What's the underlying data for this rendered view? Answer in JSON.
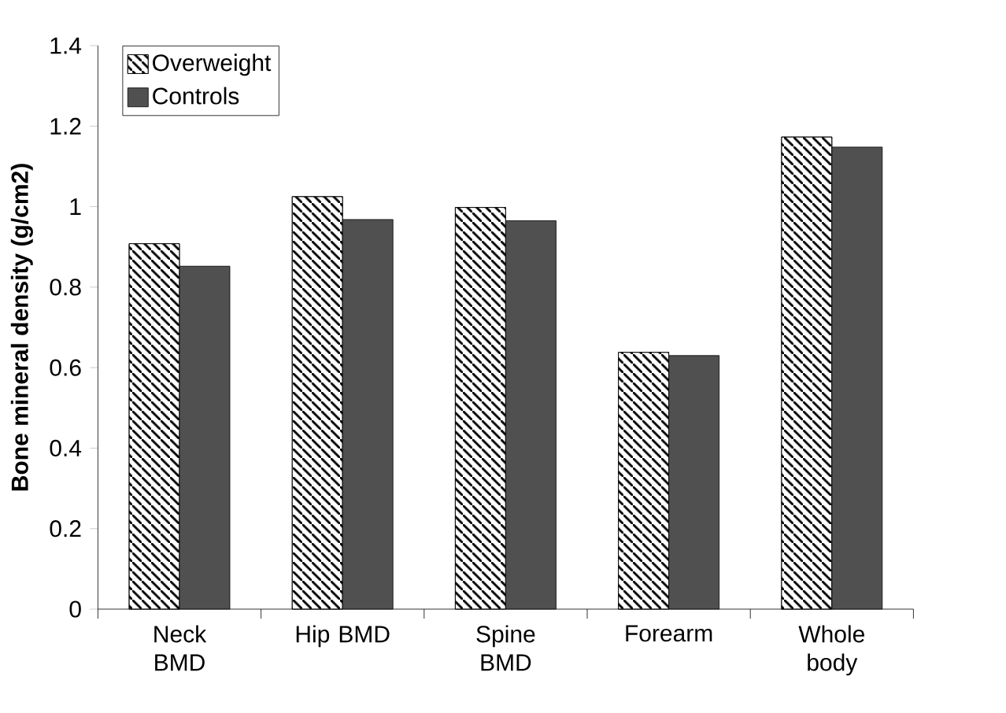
{
  "chart_data": {
    "type": "bar",
    "ylabel": "Bone mineral density (g/cm2)",
    "categories": [
      "Neck BMD",
      "Hip BMD",
      "Spine BMD",
      "Forearm",
      "Whole body"
    ],
    "series": [
      {
        "name": "Overweight",
        "color": "#ffffff",
        "values": [
          0.908,
          1.025,
          0.998,
          0.638,
          1.173
        ]
      },
      {
        "name": "Controls",
        "color": "#505050",
        "values": [
          0.852,
          0.968,
          0.965,
          0.63,
          1.148
        ]
      }
    ],
    "ylim": [
      0,
      1.4
    ],
    "yticks": [
      0,
      0.2,
      0.4,
      0.6,
      0.8,
      1,
      1.2,
      1.4
    ],
    "grid": false,
    "legend": "top left"
  }
}
